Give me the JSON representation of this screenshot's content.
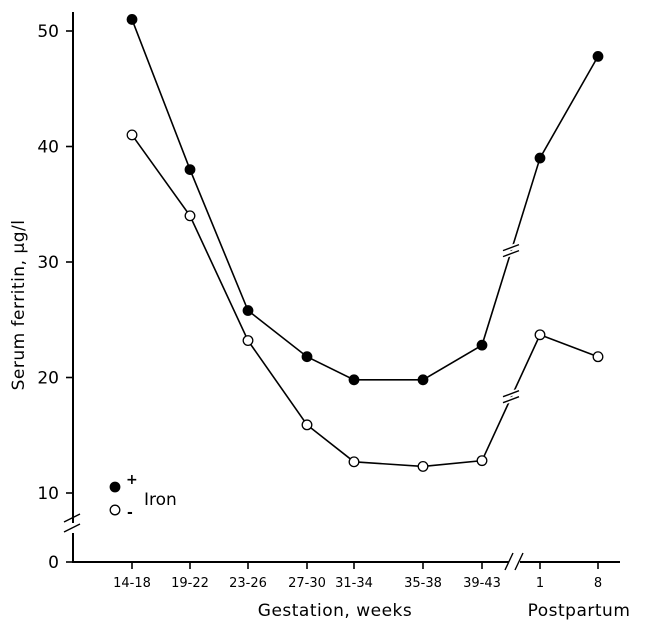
{
  "chart_data": {
    "type": "line",
    "title": "",
    "ylabel": "Serum ferritin, μg/l",
    "xlabel": "Gestation, weeks",
    "xlabel_secondary": "Postpartum",
    "ylim": [
      0,
      50
    ],
    "y_ticks": [
      "0",
      "10",
      "20",
      "30",
      "40",
      "50"
    ],
    "categories": [
      "14-18",
      "19-22",
      "23-26",
      "27-30",
      "31-34",
      "35-38",
      "39-43",
      "1",
      "8"
    ],
    "series": [
      {
        "name": "+",
        "marker": "filled",
        "values": [
          51,
          38,
          25.8,
          21.8,
          19.8,
          19.8,
          22.8,
          39,
          47.8
        ]
      },
      {
        "name": "-",
        "marker": "open",
        "values": [
          41,
          34,
          23.2,
          15.9,
          12.7,
          12.3,
          12.8,
          23.7,
          21.8
        ]
      }
    ],
    "legend": {
      "label": "Iron",
      "position": "bottom-left"
    },
    "axis_breaks": [
      "y",
      "x"
    ],
    "grid": false
  }
}
